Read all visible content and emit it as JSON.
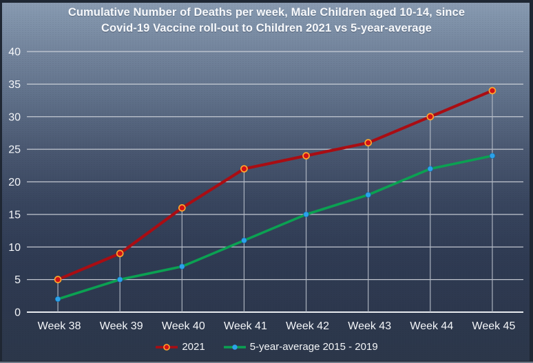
{
  "title": {
    "line1": "Cumulative Number of Deaths per week, Male Children aged 10-14, since",
    "line2": "Covid-19 Vaccine roll-out to Children 2021 vs 5-year-average"
  },
  "chart_data": {
    "type": "line",
    "title": "Cumulative Number of Deaths per week, Male Children aged 10-14, since Covid-19 Vaccine roll-out to Children 2021 vs 5-year-average",
    "categories": [
      "Week 38",
      "Week 39",
      "Week 40",
      "Week 41",
      "Week 42",
      "Week 43",
      "Week 44",
      "Week 45"
    ],
    "series": [
      {
        "name": "2021",
        "values": [
          5,
          9,
          16,
          22,
          24,
          26,
          30,
          34
        ],
        "line_color": "#a90d13",
        "marker_fill": "#d11116",
        "marker_ring": "#ffa62b"
      },
      {
        "name": "5-year-average 2015 - 2019",
        "values": [
          2,
          5,
          7,
          11,
          15,
          18,
          22,
          24
        ],
        "line_color": "#0ba152",
        "marker_fill": "#2ca2ea"
      }
    ],
    "xlabel": "",
    "ylabel": "",
    "ylim": [
      0,
      40
    ],
    "y_ticks": [
      0,
      5,
      10,
      15,
      20,
      25,
      30,
      35,
      40
    ],
    "grid": "horizontal gridlines; vertical drop lines from 2021 series points to x-axis",
    "legend_position": "bottom-center"
  },
  "colors": {
    "text": "#f4f6f9",
    "gridline": "#d2d6dd",
    "axis_line": "#e9ecf0",
    "drop_line": "#b3bac5",
    "frame": "#1f2733",
    "background_top": "#8396ad",
    "background_bottom": "#2c374a"
  }
}
